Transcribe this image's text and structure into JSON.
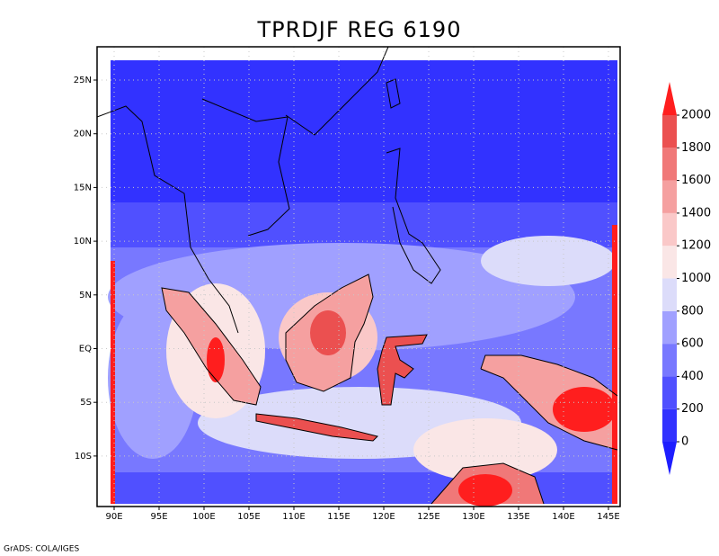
{
  "map": {
    "title": "TPRDJF REG 6190",
    "lonlim": [
      88.1,
      146.3
    ],
    "latlim": [
      -14.7,
      28.1
    ],
    "lonticks": [
      {
        "value": 90,
        "label": "90E"
      },
      {
        "value": 95,
        "label": "95E"
      },
      {
        "value": 100,
        "label": "100E"
      },
      {
        "value": 105,
        "label": "105E"
      },
      {
        "value": 110,
        "label": "110E"
      },
      {
        "value": 115,
        "label": "115E"
      },
      {
        "value": 120,
        "label": "120E"
      },
      {
        "value": 125,
        "label": "125E"
      },
      {
        "value": 130,
        "label": "130E"
      },
      {
        "value": 135,
        "label": "135E"
      },
      {
        "value": 140,
        "label": "140E"
      },
      {
        "value": 145,
        "label": "145E"
      }
    ],
    "latticks": [
      {
        "value": 25,
        "label": "25N"
      },
      {
        "value": 20,
        "label": "20N"
      },
      {
        "value": 15,
        "label": "15N"
      },
      {
        "value": 10,
        "label": "10N"
      },
      {
        "value": 5,
        "label": "5N"
      },
      {
        "value": 0,
        "label": "EQ"
      },
      {
        "value": -5,
        "label": "5S"
      },
      {
        "value": -10,
        "label": "10S"
      }
    ],
    "grid": true,
    "colorbar": {
      "levels": [
        0,
        200,
        400,
        600,
        800,
        1000,
        1200,
        1400,
        1600,
        1800,
        2000
      ],
      "colors": [
        "#1e1eff",
        "#3232ff",
        "#5050ff",
        "#7878ff",
        "#a0a0ff",
        "#dcdcfa",
        "#fae6e6",
        "#fac8c8",
        "#f5a0a0",
        "#f07878",
        "#eb5050",
        "#ff1e1e"
      ]
    },
    "footer": "GrADS: COLA/IGES"
  }
}
